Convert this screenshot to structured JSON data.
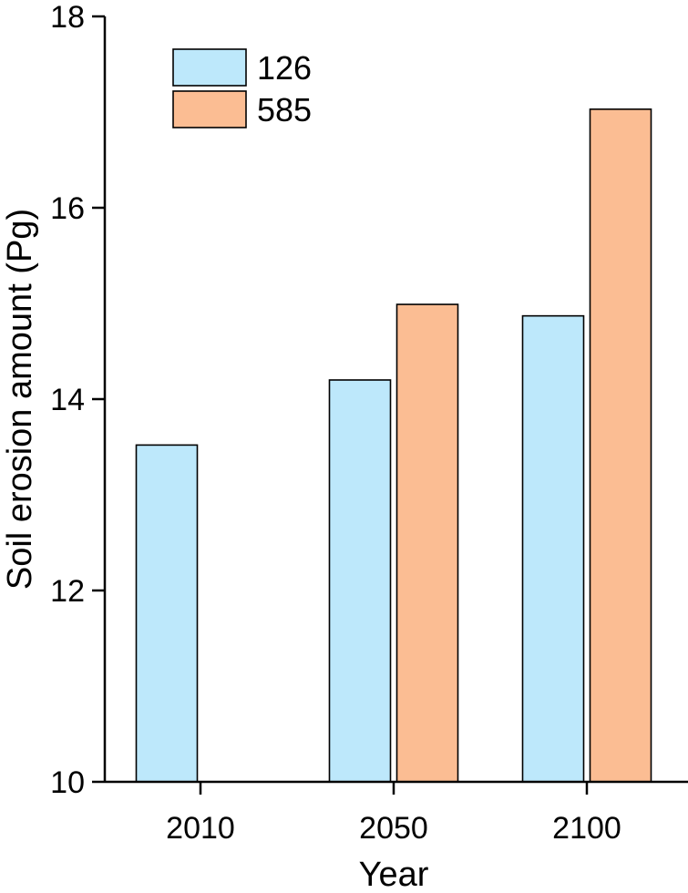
{
  "chart_data": {
    "type": "bar",
    "title": "",
    "xlabel": "Year",
    "ylabel": "Soil erosion amount (Pg)",
    "categories": [
      "2010",
      "2050",
      "2100"
    ],
    "series": [
      {
        "name": "126",
        "values": [
          13.52,
          14.2,
          14.87
        ],
        "color": "#bde8fb"
      },
      {
        "name": "585",
        "values": [
          null,
          14.99,
          17.03
        ],
        "color": "#fbbd93"
      }
    ],
    "ylim": [
      10,
      18
    ],
    "yticks": [
      10,
      12,
      14,
      16,
      18
    ],
    "grid": false,
    "legend_position": "top-left"
  }
}
